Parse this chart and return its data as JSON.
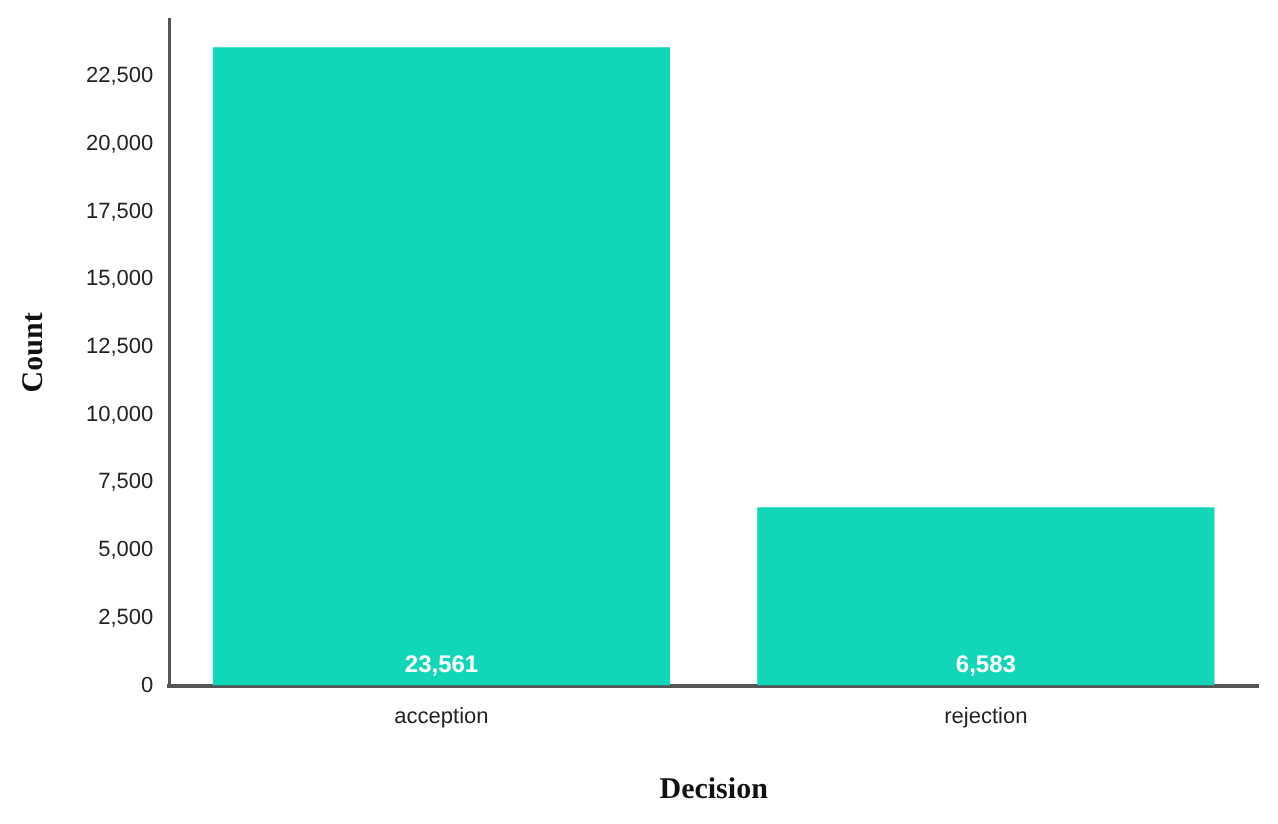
{
  "chart_data": {
    "type": "bar",
    "xlabel": "Decision",
    "ylabel": "Count",
    "categories": [
      "acception",
      "rejection"
    ],
    "values": [
      23561,
      6583
    ],
    "color": "#12d6b8",
    "value_labels": [
      "23,561",
      "6,583"
    ],
    "ylim": [
      0,
      24600
    ],
    "yticks": [
      0,
      {
        "value": 2500,
        "label": "2,500"
      },
      {
        "value": 5000,
        "label": "5,000"
      },
      {
        "value": 7500,
        "label": "7,500"
      },
      {
        "value": 10000,
        "label": "10,000"
      },
      {
        "value": 12500,
        "label": "12,500"
      },
      {
        "value": 15000,
        "label": "15,000"
      },
      {
        "value": 17500,
        "label": "17,500"
      },
      {
        "value": 20000,
        "label": "20,000"
      },
      {
        "value": 22500,
        "label": "22,500"
      }
    ],
    "grid": false,
    "legend": false
  }
}
